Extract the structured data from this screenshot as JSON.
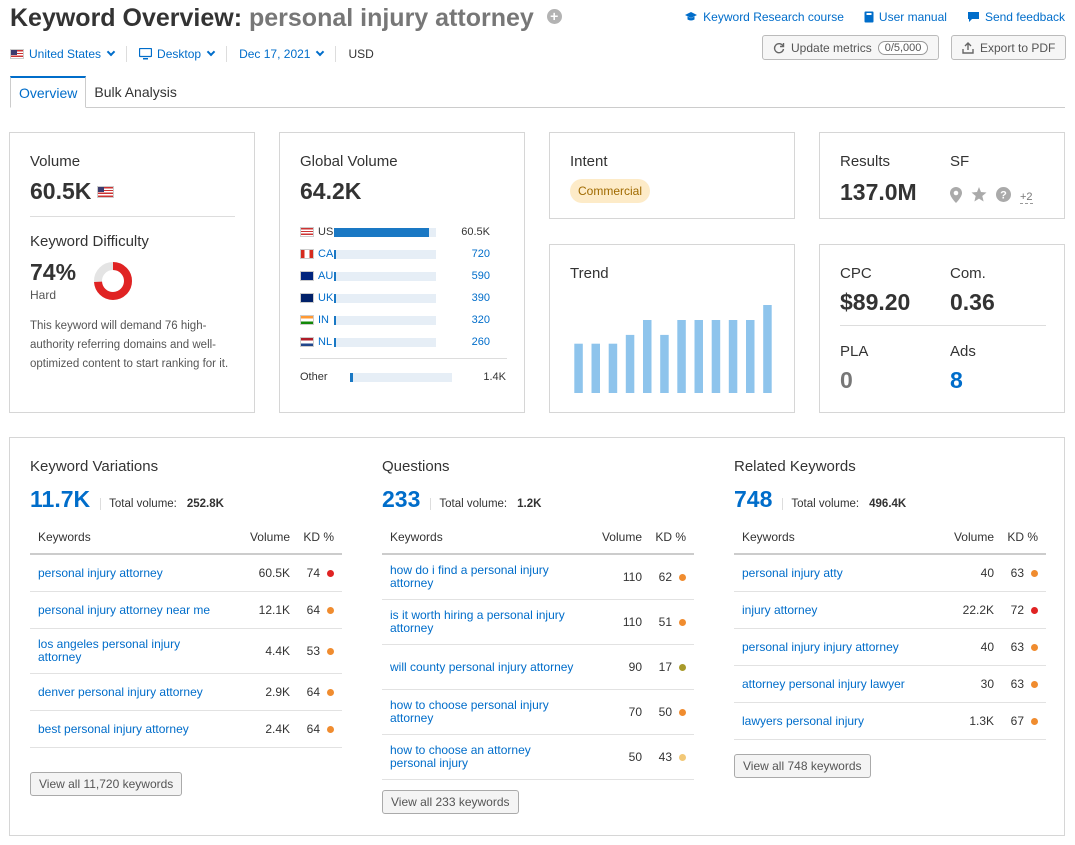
{
  "header": {
    "title_prefix": "Keyword Overview:",
    "keyword": "personal injury attorney",
    "links": [
      {
        "label": "Keyword Research course",
        "icon": "graduation-cap-icon"
      },
      {
        "label": "User manual",
        "icon": "book-icon"
      },
      {
        "label": "Send feedback",
        "icon": "chat-bubble-icon"
      }
    ],
    "update_label": "Update metrics",
    "update_counter": "0/5,000",
    "export_label": "Export to PDF"
  },
  "filters": {
    "country": "United States",
    "device": "Desktop",
    "date": "Dec 17, 2021",
    "currency": "USD"
  },
  "tabs": [
    {
      "label": "Overview",
      "active": true
    },
    {
      "label": "Bulk Analysis",
      "active": false
    }
  ],
  "volume": {
    "label": "Volume",
    "value": "60.5K",
    "kd_label": "Keyword Difficulty",
    "kd_value": "74%",
    "kd_rating": "Hard",
    "kd_percent": 74,
    "kd_color": "#e02323",
    "kd_desc": "This keyword will demand 76 high-authority referring domains and well-optimized content to start ranking for it."
  },
  "global_volume": {
    "label": "Global Volume",
    "value": "64.2K",
    "rows": [
      {
        "code": "US",
        "value": "60.5K",
        "share": 0.93
      },
      {
        "code": "CA",
        "value": "720",
        "share": 0.02
      },
      {
        "code": "AU",
        "value": "590",
        "share": 0.02
      },
      {
        "code": "UK",
        "value": "390",
        "share": 0.02
      },
      {
        "code": "IN",
        "value": "320",
        "share": 0.02
      },
      {
        "code": "NL",
        "value": "260",
        "share": 0.02
      }
    ],
    "other_label": "Other",
    "other_value": "1.4K",
    "other_share": 0.03
  },
  "intent": {
    "label": "Intent",
    "badge": "Commercial"
  },
  "results": {
    "label": "Results",
    "value": "137.0M",
    "sf_label": "SF",
    "sf_more": "+2"
  },
  "trend": {
    "label": "Trend",
    "values": [
      0.56,
      0.56,
      0.56,
      0.66,
      0.83,
      0.66,
      0.83,
      0.83,
      0.83,
      0.83,
      0.83,
      1.0
    ]
  },
  "cpc": {
    "cpc_label": "CPC",
    "cpc_value": "$89.20",
    "com_label": "Com.",
    "com_value": "0.36",
    "pla_label": "PLA",
    "pla_value": "0",
    "ads_label": "Ads",
    "ads_value": "8"
  },
  "variations": {
    "label": "Keyword Variations",
    "count": "11.7K",
    "total_label": "Total volume:",
    "total": "252.8K",
    "col_kw": "Keywords",
    "col_vol": "Volume",
    "col_kd": "KD %",
    "rows": [
      {
        "kw": "personal injury attorney",
        "vol": "60.5K",
        "kd": "74",
        "color": "#e02323"
      },
      {
        "kw": "personal injury attorney near me",
        "vol": "12.1K",
        "kd": "64",
        "color": "#f08c2f"
      },
      {
        "kw": "los angeles personal injury attorney",
        "vol": "4.4K",
        "kd": "53",
        "color": "#f08c2f"
      },
      {
        "kw": "denver personal injury attorney",
        "vol": "2.9K",
        "kd": "64",
        "color": "#f08c2f"
      },
      {
        "kw": "best personal injury attorney",
        "vol": "2.4K",
        "kd": "64",
        "color": "#f08c2f"
      }
    ],
    "view_all": "View all 11,720 keywords"
  },
  "questions": {
    "label": "Questions",
    "count": "233",
    "total_label": "Total volume:",
    "total": "1.2K",
    "col_kw": "Keywords",
    "col_vol": "Volume",
    "col_kd": "KD %",
    "rows": [
      {
        "kw": "how do i find a personal injury attorney",
        "vol": "110",
        "kd": "62",
        "color": "#f08c2f"
      },
      {
        "kw": "is it worth hiring a personal injury attorney",
        "vol": "110",
        "kd": "51",
        "color": "#f08c2f"
      },
      {
        "kw": "will county personal injury attorney",
        "vol": "90",
        "kd": "17",
        "color": "#a89a2a"
      },
      {
        "kw": "how to choose personal injury attorney",
        "vol": "70",
        "kd": "50",
        "color": "#f08c2f"
      },
      {
        "kw": "how to choose an attorney personal injury",
        "vol": "50",
        "kd": "43",
        "color": "#f2c877"
      }
    ],
    "view_all": "View all 233 keywords"
  },
  "related": {
    "label": "Related Keywords",
    "count": "748",
    "total_label": "Total volume:",
    "total": "496.4K",
    "col_kw": "Keywords",
    "col_vol": "Volume",
    "col_kd": "KD %",
    "rows": [
      {
        "kw": "personal injury atty",
        "vol": "40",
        "kd": "63",
        "color": "#f08c2f"
      },
      {
        "kw": "injury attorney",
        "vol": "22.2K",
        "kd": "72",
        "color": "#e02323"
      },
      {
        "kw": "personal injury injury attorney",
        "vol": "40",
        "kd": "63",
        "color": "#f08c2f"
      },
      {
        "kw": "attorney personal injury lawyer",
        "vol": "30",
        "kd": "63",
        "color": "#f08c2f"
      },
      {
        "kw": "lawyers personal injury",
        "vol": "1.3K",
        "kd": "67",
        "color": "#f08c2f"
      }
    ],
    "view_all": "View all 748 keywords"
  }
}
